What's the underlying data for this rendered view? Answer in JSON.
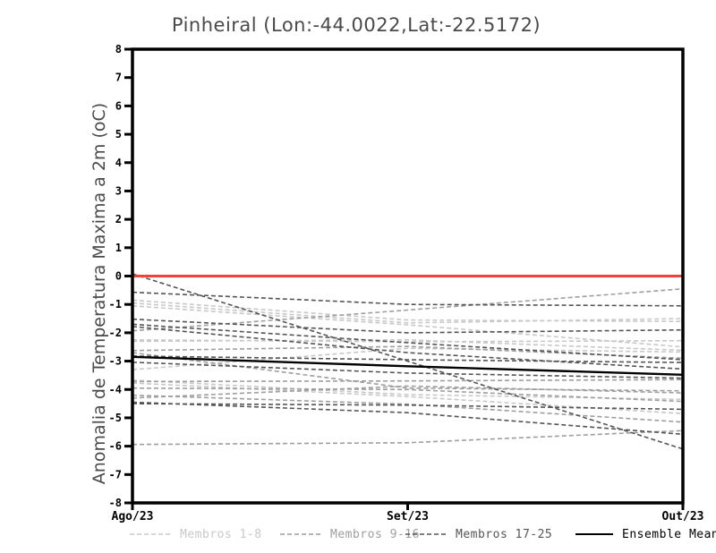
{
  "chart_data": {
    "type": "line",
    "title": "Pinheiral (Lon:-44.0022,Lat:-22.5172)",
    "ylabel": "Anomalia de Temperatura Maxima a 2m (oC)",
    "x_categories": [
      "Ago/23",
      "Set/23",
      "Out/23"
    ],
    "ylim": [
      -8,
      8
    ],
    "ytick_step": 1,
    "grid": false,
    "legend_position": "bottom",
    "zero_line": {
      "value": 0,
      "color": "#f4413a"
    },
    "legend": [
      {
        "label": "Membros 1-8",
        "color": "#c8c8c8",
        "style": "dashed"
      },
      {
        "label": "Membros 9-16",
        "color": "#9e9e9e",
        "style": "dashed"
      },
      {
        "label": "Membros 17-25",
        "color": "#555555",
        "style": "dashed"
      },
      {
        "label": "Ensemble Mean",
        "color": "#000000",
        "style": "solid"
      }
    ],
    "members": [
      {
        "group": 0,
        "values": [
          -0.85,
          -1.55,
          -1.6
        ]
      },
      {
        "group": 0,
        "values": [
          -0.95,
          -1.65,
          -1.5
        ]
      },
      {
        "group": 0,
        "values": [
          -1.05,
          -1.72,
          -2.5
        ]
      },
      {
        "group": 0,
        "values": [
          -2.3,
          -2.25,
          -2.62
        ]
      },
      {
        "group": 0,
        "values": [
          -3.3,
          -2.55,
          -2.68
        ]
      },
      {
        "group": 0,
        "values": [
          -3.67,
          -4.18,
          -4.35
        ]
      },
      {
        "group": 0,
        "values": [
          -3.77,
          -4.25,
          -4.85
        ]
      },
      {
        "group": 0,
        "values": [
          -2.25,
          -2.32,
          -2.28
        ]
      },
      {
        "group": 1,
        "values": [
          -1.93,
          -1.2,
          -0.45
        ]
      },
      {
        "group": 1,
        "values": [
          -2.63,
          -2.48,
          -2.9
        ]
      },
      {
        "group": 1,
        "values": [
          -2.7,
          -3.95,
          -4.05
        ]
      },
      {
        "group": 1,
        "values": [
          -3.72,
          -3.7,
          -3.65
        ]
      },
      {
        "group": 1,
        "values": [
          -3.95,
          -4.0,
          -4.42
        ]
      },
      {
        "group": 1,
        "values": [
          -4.2,
          -4.52,
          -5.15
        ]
      },
      {
        "group": 1,
        "values": [
          -4.3,
          -3.88,
          -4.12
        ]
      },
      {
        "group": 1,
        "values": [
          -5.94,
          -5.88,
          -5.45
        ]
      },
      {
        "group": 2,
        "values": [
          0.08,
          -3.0,
          -6.1
        ]
      },
      {
        "group": 2,
        "values": [
          -0.57,
          -1.0,
          -1.05
        ]
      },
      {
        "group": 2,
        "values": [
          -1.52,
          -2.0,
          -1.9
        ]
      },
      {
        "group": 2,
        "values": [
          -1.7,
          -2.35,
          -2.95
        ]
      },
      {
        "group": 2,
        "values": [
          -1.78,
          -2.7,
          -3.28
        ]
      },
      {
        "group": 2,
        "values": [
          -2.82,
          -2.95,
          -3.05
        ]
      },
      {
        "group": 2,
        "values": [
          -3.04,
          -3.42,
          -3.6
        ]
      },
      {
        "group": 2,
        "values": [
          -4.45,
          -4.82,
          -5.58
        ]
      },
      {
        "group": 2,
        "values": [
          -4.5,
          -4.55,
          -4.7
        ]
      }
    ],
    "ensemble_mean": [
      -2.85,
      -3.18,
      -3.48
    ]
  }
}
